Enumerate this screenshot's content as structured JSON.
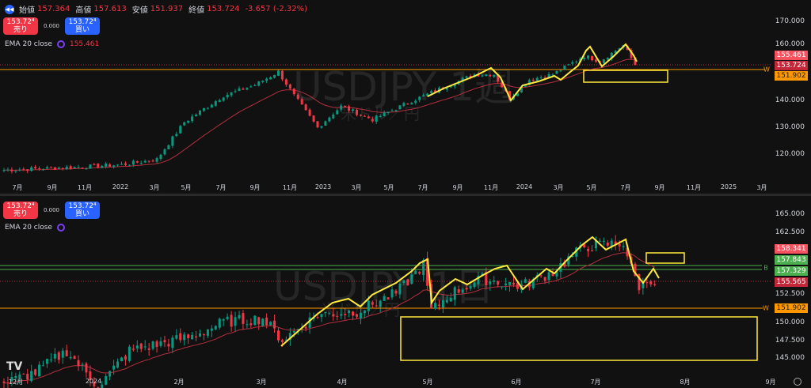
{
  "header": {
    "open_label": "始値",
    "open": "157.364",
    "high_label": "高値",
    "high": "157.613",
    "low_label": "安値",
    "low": "151.937",
    "close_label": "終値",
    "close": "153.724",
    "change": "-3.657 (-2.32%)"
  },
  "panels": [
    {
      "watermark": "USDJPY 1週",
      "watermark_sub": "米ドル／円",
      "sell_price": "153.72⁴",
      "sell_label": "売り",
      "spread": "0.000",
      "buy_price": "153.72⁴",
      "buy_label": "買い",
      "ema_label": "EMA 20 close",
      "ema_value": "155.461",
      "y_ticks": [
        "170.000",
        "160.000",
        "140.000",
        "130.000",
        "120.000"
      ],
      "price_tags": [
        {
          "v": "155.461",
          "c": "#f7525f"
        },
        {
          "v": "153.724",
          "c": "#c2283a"
        },
        {
          "v": "151.902",
          "c": "#ff9800",
          "tc": "#222"
        }
      ],
      "line_label": "W",
      "x_ticks": [
        "7月",
        "9月",
        "11月",
        "2022",
        "3月",
        "5月",
        "7月",
        "9月",
        "11月",
        "2023",
        "3月",
        "5月",
        "7月",
        "9月",
        "11月",
        "2024",
        "3月",
        "5月",
        "7月",
        "9月",
        "11月",
        "2025",
        "3月"
      ]
    },
    {
      "watermark": "USDJPY 1日",
      "watermark_sub": "米ドル／円",
      "sell_price": "153.72⁴",
      "sell_label": "売り",
      "spread": "0.000",
      "buy_price": "153.72⁴",
      "buy_label": "買い",
      "ema_label": "EMA 20 close",
      "y_ticks": [
        "165.000",
        "162.500",
        "152.500",
        "150.000",
        "147.500",
        "145.000"
      ],
      "price_tags": [
        {
          "v": "158.341",
          "c": "#f7525f"
        },
        {
          "v": "157.843",
          "c": "#4caf50"
        },
        {
          "v": "157.329",
          "c": "#4caf50"
        },
        {
          "v": "155.565",
          "c": "#c2283a"
        },
        {
          "v": "151.902",
          "c": "#ff9800",
          "tc": "#222"
        }
      ],
      "line_label_b": "B",
      "line_label": "W",
      "x_ticks": [
        "12月",
        "2024",
        "2月",
        "3月",
        "4月",
        "5月",
        "6月",
        "7月",
        "8月",
        "9月"
      ]
    }
  ],
  "logo": "TV",
  "chart_data": {
    "type": "candlestick",
    "series": [
      {
        "name": "USDJPY weekly",
        "approx_path": [
          [
            0,
            114
          ],
          [
            17,
            115
          ],
          [
            30,
            116
          ],
          [
            39,
            118
          ],
          [
            46,
            132
          ],
          [
            56,
            142
          ],
          [
            64,
            146
          ],
          [
            70,
            151
          ],
          [
            74,
            142
          ],
          [
            80,
            130
          ],
          [
            86,
            138
          ],
          [
            94,
            133
          ],
          [
            104,
            140
          ],
          [
            112,
            145
          ],
          [
            120,
            150
          ],
          [
            125,
            150
          ],
          [
            129,
            141
          ],
          [
            134,
            148
          ],
          [
            140,
            150
          ],
          [
            148,
            157
          ],
          [
            152,
            155
          ],
          [
            158,
            161
          ],
          [
            161,
            153.7
          ]
        ]
      },
      {
        "name": "USDJPY daily",
        "approx_path": [
          [
            0,
            141.5
          ],
          [
            8,
            143
          ],
          [
            16,
            146
          ],
          [
            24,
            141
          ],
          [
            32,
            146
          ],
          [
            40,
            147
          ],
          [
            48,
            148
          ],
          [
            56,
            150
          ],
          [
            66,
            150.5
          ],
          [
            71,
            147.5
          ],
          [
            80,
            151
          ],
          [
            90,
            151.5
          ],
          [
            100,
            154
          ],
          [
            107,
            158
          ],
          [
            109,
            151.5
          ],
          [
            114,
            154
          ],
          [
            122,
            156
          ],
          [
            132,
            155
          ],
          [
            140,
            157
          ],
          [
            148,
            160.5
          ],
          [
            158,
            161
          ],
          [
            160,
            157.5
          ],
          [
            162,
            155
          ],
          [
            165,
            156
          ],
          [
            166,
            155.5
          ]
        ]
      }
    ],
    "ema_period": 20
  }
}
